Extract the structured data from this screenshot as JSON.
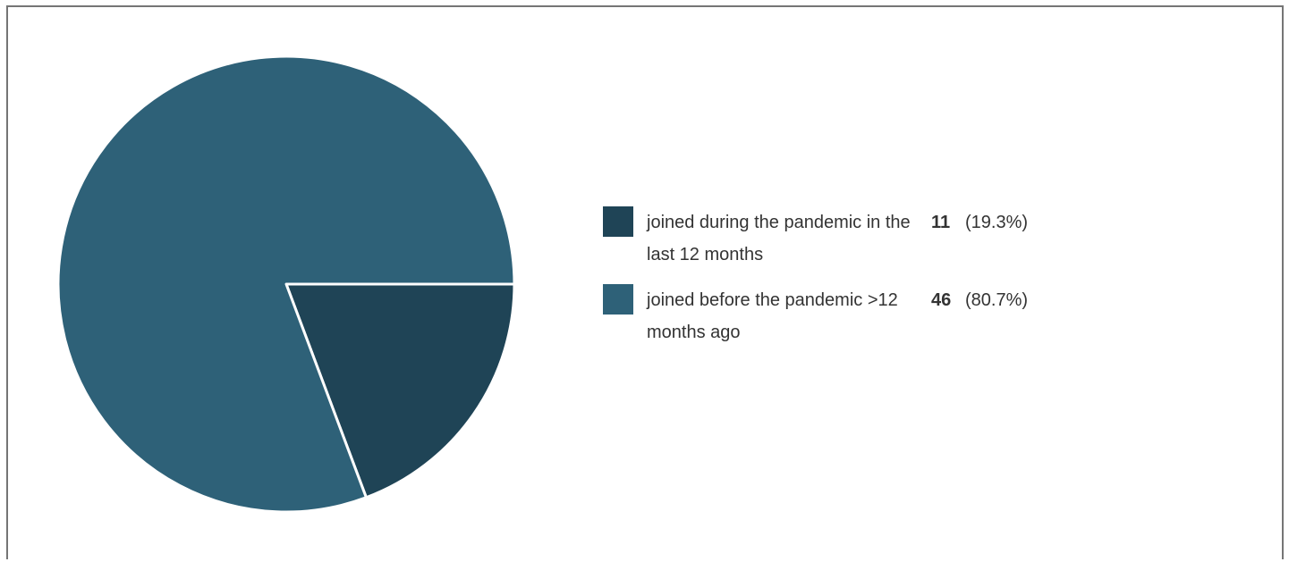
{
  "chart_data": {
    "type": "pie",
    "slices": [
      {
        "label": "joined during the pandemic in the last 12 months",
        "value": 11,
        "percent_label": "(19.3%)",
        "color": "#1f4456"
      },
      {
        "label": "joined before the pandemic >12 months ago",
        "value": 46,
        "percent_label": "(80.7%)",
        "color": "#2e6178"
      }
    ],
    "legend_position": "right",
    "slice_border_color": "#ffffff"
  }
}
